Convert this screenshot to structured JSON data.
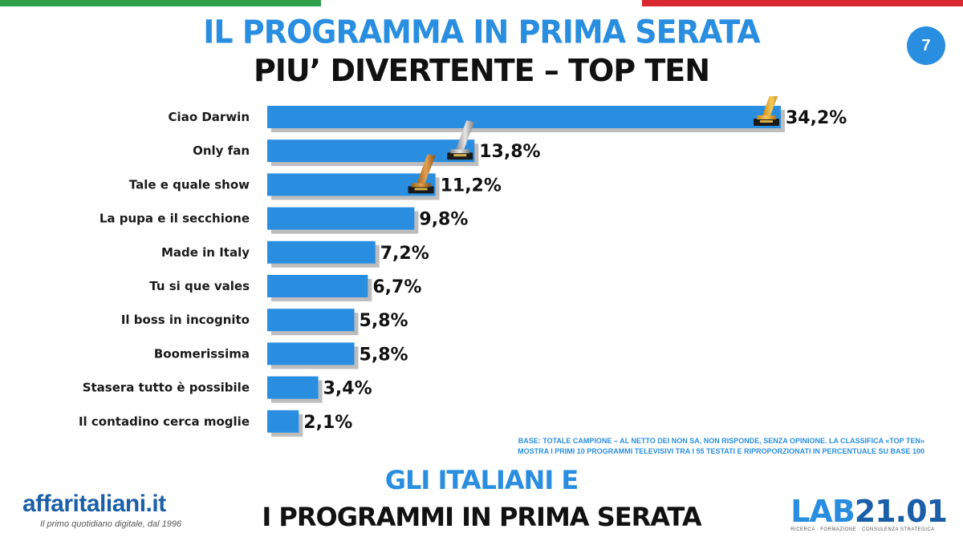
{
  "header": {
    "title_line1": "IL PROGRAMMA IN PRIMA SERATA",
    "title_line2": "PIU’ DIVERTENTE – TOP TEN",
    "page_number": "7"
  },
  "colors": {
    "accent": "#2a8ee0",
    "bar": "#2a8ee0",
    "flag_green": "#2e9e4a",
    "flag_red": "#d9282f"
  },
  "chart_data": {
    "type": "bar",
    "orientation": "horizontal",
    "categories": [
      "Ciao Darwin",
      "Only fan",
      "Tale e quale show",
      "La pupa e il secchione",
      "Made in Italy",
      "Tu si que vales",
      "Il boss in incognito",
      "Boomerissima",
      "Stasera tutto è possibile",
      "Il contadino cerca moglie"
    ],
    "values": [
      34.2,
      13.8,
      11.2,
      9.8,
      7.2,
      6.7,
      5.8,
      5.8,
      3.4,
      2.1
    ],
    "value_labels": [
      "34,2%",
      "13,8%",
      "11,2%",
      "9,8%",
      "7,2%",
      "6,7%",
      "5,8%",
      "5,8%",
      "3,4%",
      "2,1%"
    ],
    "awards": [
      "gold-trophy-icon",
      "silver-trophy-icon",
      "bronze-trophy-icon"
    ],
    "title": "",
    "xlabel": "",
    "ylabel": "",
    "xlim": [
      0,
      34.2
    ],
    "grid": false,
    "legend": "none"
  },
  "note": {
    "line1": "BASE: TOTALE CAMPIONE – AL NETTO DEI NON SA, NON RISPONDE, SENZA OPINIONE. LA CLASSIFICA «TOP TEN»",
    "line2": "MOSTRA I PRIMI 10 PROGRAMMI TELEVISIVI TRA I 55 TESTATI E RIPROPORZIONATI IN PERCENTUALE SU BASE 100"
  },
  "footer": {
    "line1": "GLI ITALIANI E",
    "line2": "I PROGRAMMI IN PRIMA SERATA"
  },
  "logos": {
    "left_name": "affaritaliani.it",
    "left_tagline": "Il primo quotidiano digitale, dal 1996",
    "right_name_a": "LAB",
    "right_name_b": "21.01",
    "right_tagline": "RICERCA · FORMAZIONE · CONSULENZA STRATEGICA"
  }
}
